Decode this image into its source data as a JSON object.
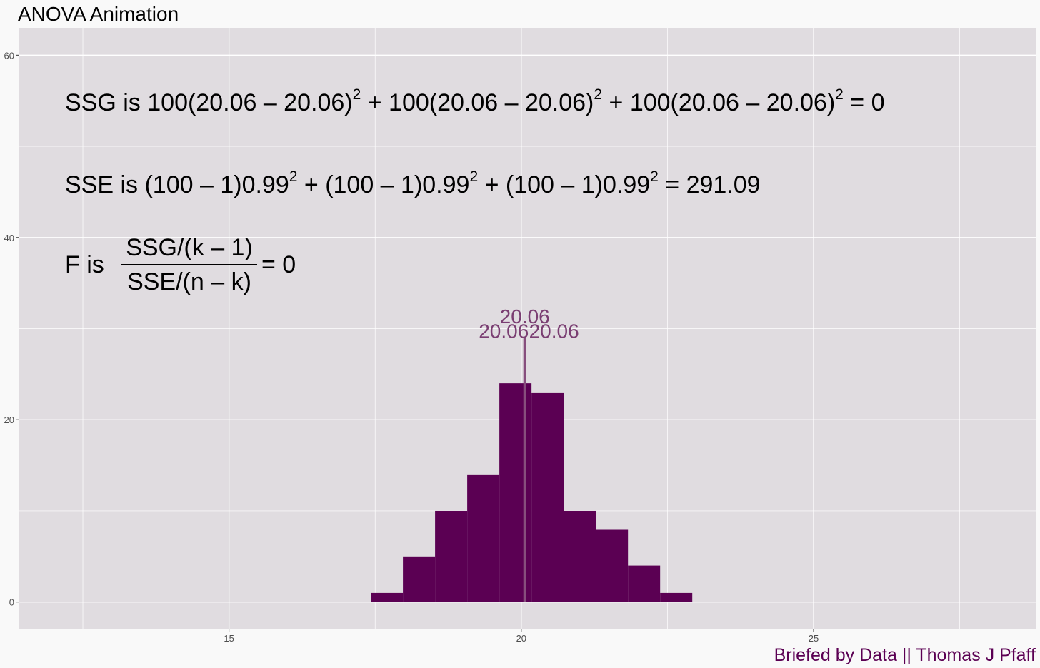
{
  "chart_data": {
    "type": "bar",
    "title": "ANOVA Animation",
    "caption": "Briefed by Data || Thomas J Pfaff",
    "xlim": [
      11.4,
      28.8
    ],
    "ylim": [
      -3,
      63
    ],
    "x_ticks": [
      15,
      20,
      25
    ],
    "y_ticks": [
      0,
      20,
      40,
      60
    ],
    "grid": true,
    "legend": "none",
    "bin_width": 0.55,
    "bins": [
      {
        "x": 17.7,
        "count": 1
      },
      {
        "x": 18.25,
        "count": 5
      },
      {
        "x": 18.8,
        "count": 10
      },
      {
        "x": 19.35,
        "count": 14
      },
      {
        "x": 19.9,
        "count": 24
      },
      {
        "x": 20.45,
        "count": 23
      },
      {
        "x": 21.0,
        "count": 10
      },
      {
        "x": 21.55,
        "count": 8
      },
      {
        "x": 22.1,
        "count": 4
      },
      {
        "x": 22.65,
        "count": 1
      }
    ],
    "mean_line": {
      "x": 20.06,
      "top": 29
    },
    "mean_labels": [
      {
        "text": "20.06",
        "x": 20.06,
        "y": 30.6
      },
      {
        "text": "20.06",
        "x": 19.7,
        "y": 29.0
      },
      {
        "text": "20.06",
        "x": 20.56,
        "y": 29.0
      }
    ],
    "equations": {
      "ssg": {
        "lead": "SSG  is  ",
        "terms": [
          "100(20.06 – 20.06)",
          "100(20.06 – 20.06)",
          "100(20.06 – 20.06)"
        ],
        "sep": " + ",
        "exp": "2",
        "result": " = 0"
      },
      "sse": {
        "lead": "SSE  is  ",
        "terms": [
          "(100 – 1)0.99",
          "(100 – 1)0.99",
          "(100 – 1)0.99"
        ],
        "sep": " + ",
        "exp": "2",
        "result": " = 291.09"
      },
      "f": {
        "lead": "F  is",
        "numerator": "SSG/(k – 1)",
        "denominator": "SSE/(n – k)",
        "result": "= 0"
      }
    },
    "colors": {
      "panel": "#e0dce0",
      "grid": "#ffffff",
      "bar": "#5b0053",
      "mean_line": "#874e7d",
      "label": "#7a3e72",
      "caption": "#5b0053"
    }
  }
}
